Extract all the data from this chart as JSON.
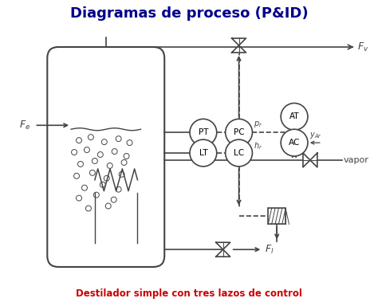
{
  "title": "Diagramas de proceso (P&ID)",
  "subtitle": "Destilador simple con tres lazos de control",
  "subtitle_color": "#cc0000",
  "title_color": "#00008B",
  "bg_color": "#ffffff",
  "line_color": "#444444",
  "label_Fe": "$F_e$",
  "label_Fv": "$F_v$",
  "label_Fl": "$F_l$",
  "label_vapor": "vapor",
  "label_PT": "PT",
  "label_PC": "PC",
  "label_LT": "LT",
  "label_LC": "LC",
  "label_AT": "AT",
  "label_AC": "AC",
  "label_pr": "$p_r$",
  "label_hr": "$h_r$",
  "label_yAr": "$y_{Ar}$"
}
